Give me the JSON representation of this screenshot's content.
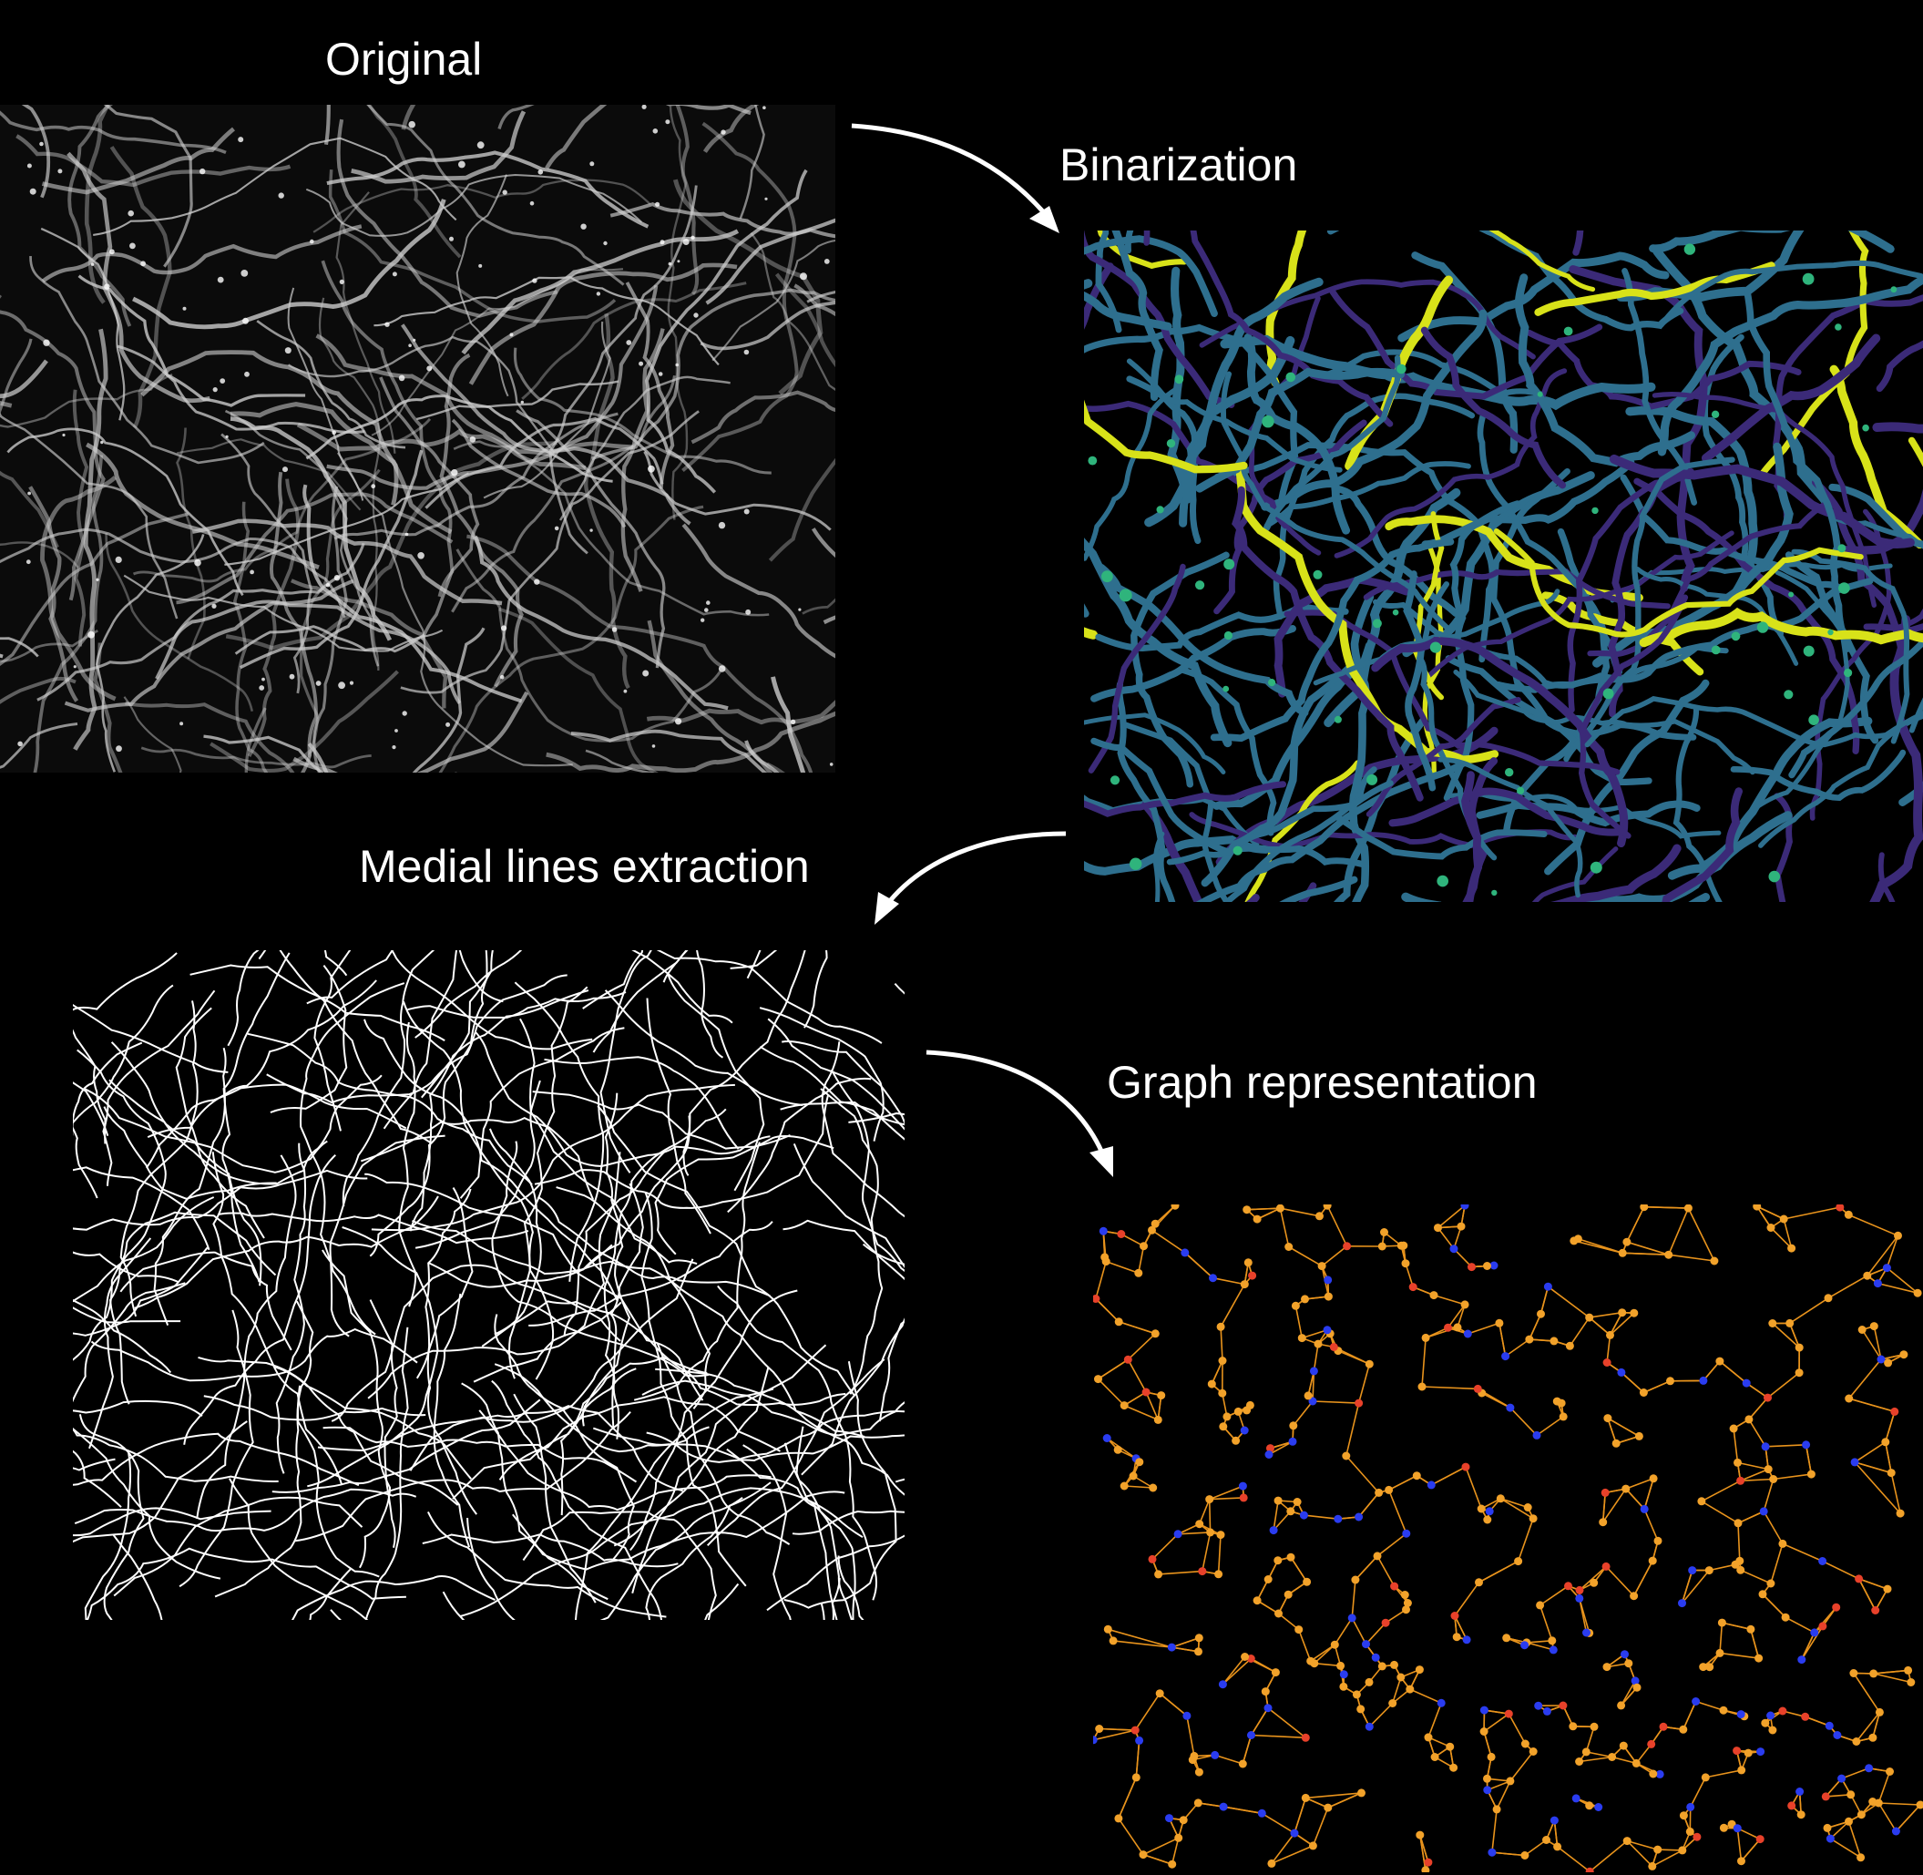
{
  "steps": {
    "original": {
      "title": "Original"
    },
    "binarization": {
      "title": "Binarization"
    },
    "medial": {
      "title": "Medial lines extraction"
    },
    "graph": {
      "title": "Graph representation"
    }
  },
  "colors": {
    "background": "#000000",
    "original_fiber": "#cfcfcf",
    "binarization_low": "#3b2a78",
    "binarization_mid": "#2e6f8e",
    "binarization_high": "#d8e219",
    "skeleton": "#ffffff",
    "graph_edge": "#e8931c",
    "graph_node": "#f2a22a",
    "graph_branch_node": "#e8412a",
    "graph_end_node": "#2a3cf0"
  }
}
